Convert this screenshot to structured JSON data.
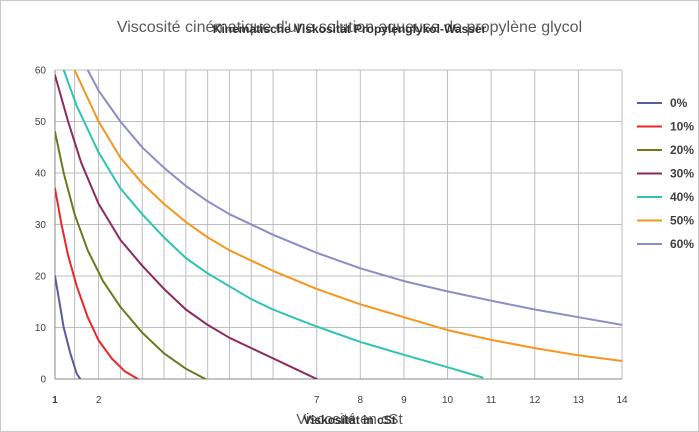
{
  "chart_data": {
    "type": "line",
    "title": "Viscosité cinématique d'une solution aqueuse de propylène glycol",
    "title_overlay": "Kinematische Viskosität Propylenglykol-Wasser",
    "xlabel": "Viscosité en cSt",
    "xlabel_overlay": "Viskosität in cSt",
    "ylabel": "",
    "xlim": [
      1,
      14
    ],
    "ylim": [
      0,
      60
    ],
    "x_ticks": [
      {
        "value": 1,
        "label": "1"
      },
      {
        "value": 2,
        "label": "2"
      },
      {
        "value": 7,
        "label": "7"
      },
      {
        "value": 8,
        "label": "8"
      },
      {
        "value": 9,
        "label": "9"
      },
      {
        "value": 10,
        "label": "10"
      },
      {
        "value": 11,
        "label": "11"
      },
      {
        "value": 12,
        "label": "12"
      },
      {
        "value": 13,
        "label": "13"
      },
      {
        "value": 14,
        "label": "14"
      }
    ],
    "x_gridlines": [
      1,
      1.45,
      2,
      2.5,
      3,
      3.5,
      4,
      4.5,
      5,
      5.5,
      6,
      7,
      8,
      9,
      10,
      11,
      12,
      13,
      14
    ],
    "y_ticks": [
      0,
      10,
      20,
      30,
      40,
      50,
      60
    ],
    "grid": true,
    "legend": "right",
    "series": [
      {
        "name": "0%",
        "color": "#5a5a9e",
        "points": [
          [
            1,
            20
          ],
          [
            1.1,
            15
          ],
          [
            1.2,
            10
          ],
          [
            1.35,
            5
          ],
          [
            1.5,
            1
          ],
          [
            1.58,
            0
          ]
        ]
      },
      {
        "name": "10%",
        "color": "#e8282a",
        "points": [
          [
            1,
            37
          ],
          [
            1.15,
            30
          ],
          [
            1.3,
            24
          ],
          [
            1.5,
            18
          ],
          [
            1.75,
            12
          ],
          [
            2,
            7.5
          ],
          [
            2.3,
            4
          ],
          [
            2.6,
            1.5
          ],
          [
            2.9,
            0
          ]
        ]
      },
      {
        "name": "20%",
        "color": "#6a7a1e",
        "points": [
          [
            1,
            48
          ],
          [
            1.2,
            40
          ],
          [
            1.45,
            32
          ],
          [
            1.75,
            25
          ],
          [
            2.1,
            19
          ],
          [
            2.5,
            14
          ],
          [
            3,
            9
          ],
          [
            3.5,
            5
          ],
          [
            4,
            2
          ],
          [
            4.45,
            0
          ]
        ]
      },
      {
        "name": "30%",
        "color": "#8e2a5e",
        "points": [
          [
            1,
            59
          ],
          [
            1.3,
            50
          ],
          [
            1.6,
            42
          ],
          [
            2,
            34
          ],
          [
            2.5,
            27
          ],
          [
            3,
            22
          ],
          [
            3.5,
            17.5
          ],
          [
            4,
            13.5
          ],
          [
            4.5,
            10.5
          ],
          [
            5,
            8
          ],
          [
            5.5,
            6
          ],
          [
            6,
            4
          ],
          [
            6.5,
            2
          ],
          [
            7,
            0
          ]
        ]
      },
      {
        "name": "40%",
        "color": "#2ec4b4",
        "points": [
          [
            1.2,
            60
          ],
          [
            1.5,
            53
          ],
          [
            2,
            44
          ],
          [
            2.5,
            37
          ],
          [
            3,
            32
          ],
          [
            3.5,
            27.5
          ],
          [
            4,
            23.5
          ],
          [
            4.5,
            20.5
          ],
          [
            5,
            18
          ],
          [
            5.5,
            15.5
          ],
          [
            6,
            13.5
          ],
          [
            6.5,
            11.8
          ],
          [
            7,
            10.2
          ],
          [
            8,
            7.2
          ],
          [
            9,
            4.7
          ],
          [
            10,
            2.3
          ],
          [
            10.8,
            0.3
          ]
        ]
      },
      {
        "name": "50%",
        "color": "#f5961e",
        "points": [
          [
            1.45,
            60
          ],
          [
            2,
            50
          ],
          [
            2.5,
            43
          ],
          [
            3,
            38
          ],
          [
            3.5,
            34
          ],
          [
            4,
            30.5
          ],
          [
            4.5,
            27.5
          ],
          [
            5,
            25
          ],
          [
            6,
            21
          ],
          [
            7,
            17.5
          ],
          [
            8,
            14.5
          ],
          [
            9,
            12
          ],
          [
            10,
            9.5
          ],
          [
            11,
            7.6
          ],
          [
            12,
            6
          ],
          [
            13,
            4.6
          ],
          [
            14,
            3.5
          ]
        ]
      },
      {
        "name": "60%",
        "color": "#8c8cc8",
        "points": [
          [
            1.75,
            60
          ],
          [
            2,
            56
          ],
          [
            2.5,
            50
          ],
          [
            3,
            45
          ],
          [
            3.5,
            41
          ],
          [
            4,
            37.5
          ],
          [
            4.5,
            34.5
          ],
          [
            5,
            32
          ],
          [
            6,
            28
          ],
          [
            7,
            24.5
          ],
          [
            8,
            21.5
          ],
          [
            9,
            19
          ],
          [
            10,
            17
          ],
          [
            11,
            15.2
          ],
          [
            12,
            13.5
          ],
          [
            13,
            12
          ],
          [
            14,
            10.5
          ]
        ]
      }
    ]
  }
}
